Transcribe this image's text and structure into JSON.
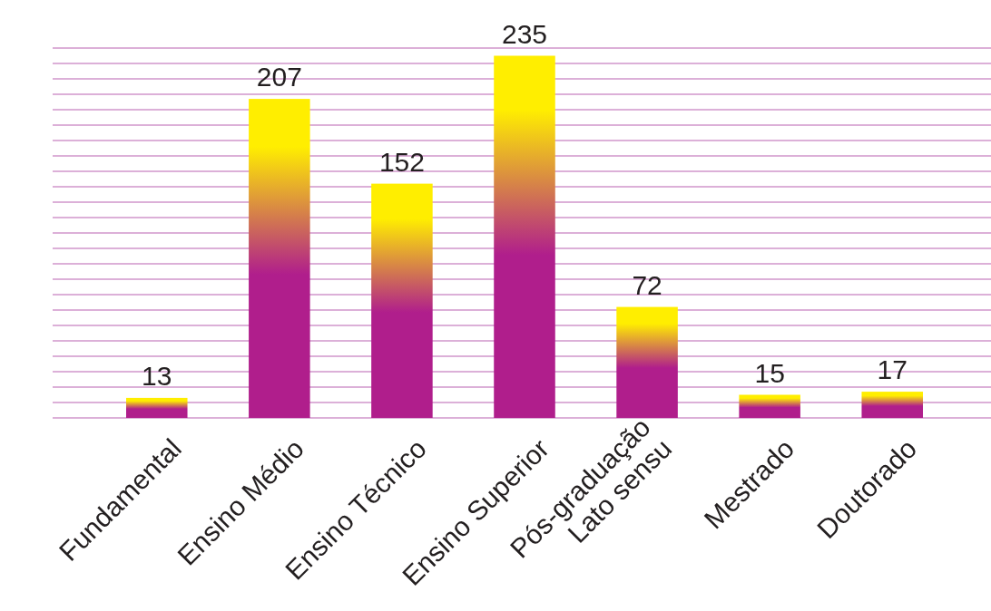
{
  "chart_data": {
    "type": "bar",
    "categories": [
      "Fundamental",
      "Ensino Médio",
      "Ensino Técnico",
      "Ensino Superior",
      "Pós-graduação\nLato sensu",
      "Mestrado",
      "Doutorado"
    ],
    "values": [
      13,
      207,
      152,
      235,
      72,
      15,
      17
    ],
    "color": "#b01e8c",
    "data_labels": true,
    "ylim": [
      0,
      240
    ],
    "yticks": [
      {
        "value": 0,
        "label": null
      },
      {
        "value": 10,
        "label": null
      },
      {
        "value": 20,
        "label": null
      },
      {
        "value": 30,
        "label": null
      },
      {
        "value": 40,
        "label": null
      },
      {
        "value": 50,
        "label": null
      },
      {
        "value": 60,
        "label": null
      },
      {
        "value": 70,
        "label": null
      },
      {
        "value": 80,
        "label": null
      },
      {
        "value": 90,
        "label": null
      },
      {
        "value": 100,
        "label": null
      },
      {
        "value": 110,
        "label": null
      },
      {
        "value": 120,
        "label": null
      },
      {
        "value": 130,
        "label": null
      },
      {
        "value": 140,
        "label": null
      },
      {
        "value": 150,
        "label": null
      },
      {
        "value": 160,
        "label": null
      },
      {
        "value": 170,
        "label": null
      },
      {
        "value": 180,
        "label": null
      },
      {
        "value": 190,
        "label": null
      },
      {
        "value": 200,
        "label": null
      },
      {
        "value": 210,
        "label": null
      },
      {
        "value": 220,
        "label": null
      },
      {
        "value": 230,
        "label": null
      },
      {
        "value": 240,
        "label": null
      }
    ],
    "grid": "y",
    "tick_labels": "x"
  }
}
